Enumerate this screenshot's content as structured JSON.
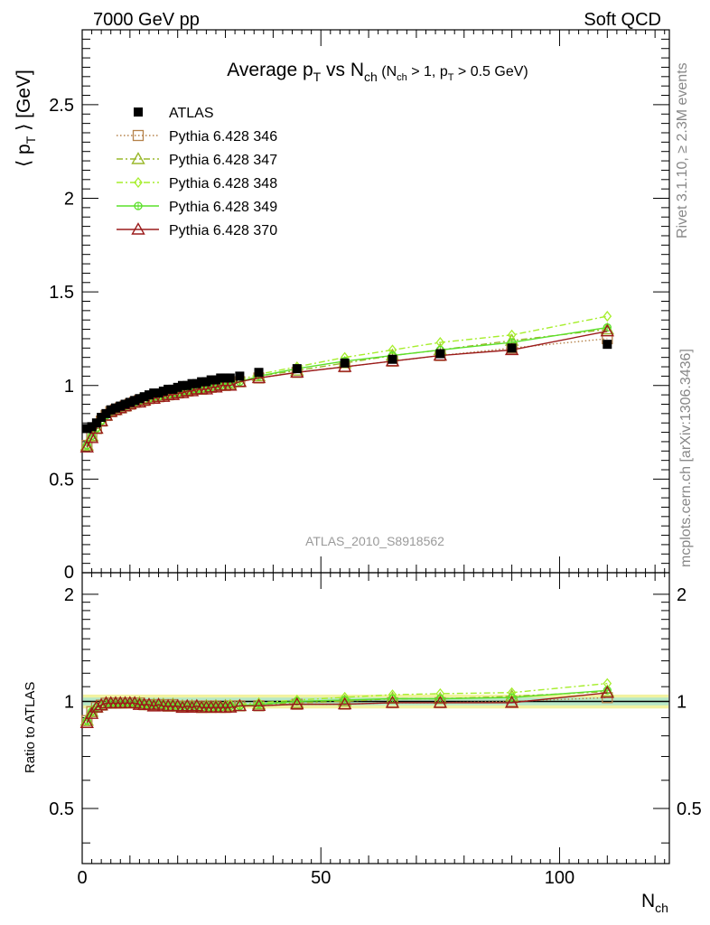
{
  "header": {
    "left": "7000 GeV pp",
    "right": "Soft QCD"
  },
  "side": {
    "rivet": "Rivet 3.1.10, ≥ 2.3M events",
    "mcplots": "mcplots.cern.ch [arXiv:1306.3436]"
  },
  "chart_data": {
    "type": "line",
    "title": "Average p_T vs N_ch (N_ch > 1, p_T > 0.5 GeV)",
    "analysis_label": "ATLAS_2010_S8918562",
    "xlabel": "N_ch",
    "ylabel": "⟨ p_T ⟩ [GeV]",
    "ratio_ylabel": "Ratio to ATLAS",
    "xlim": [
      0,
      123
    ],
    "ylim": [
      0,
      2.9
    ],
    "ratio_ylim": [
      0.35,
      2.3
    ],
    "x_ticks": [
      0,
      50,
      100
    ],
    "y_ticks": [
      "0.5",
      "1",
      "1.5",
      "2",
      "2.5"
    ],
    "y_tick_bottom": "0",
    "ratio_ticks": [
      "0.5",
      "1",
      "2"
    ],
    "legend_position": "top-left",
    "x": [
      1,
      2,
      3,
      4,
      5,
      6,
      7,
      8,
      9,
      10,
      11,
      12,
      13,
      14,
      15,
      16,
      17,
      18,
      19,
      20,
      21,
      22,
      23,
      24,
      25,
      26,
      27,
      28,
      29,
      30,
      31,
      33,
      37,
      45,
      55,
      65,
      75,
      90,
      110
    ],
    "series": [
      {
        "name": "ATLAS",
        "color": "#000000",
        "marker": "square-filled",
        "line": "none",
        "values": [
          0.77,
          0.78,
          0.8,
          0.83,
          0.85,
          0.87,
          0.88,
          0.89,
          0.9,
          0.91,
          0.92,
          0.93,
          0.94,
          0.95,
          0.96,
          0.96,
          0.97,
          0.98,
          0.98,
          0.99,
          1.0,
          1.0,
          1.01,
          1.01,
          1.02,
          1.02,
          1.03,
          1.03,
          1.04,
          1.04,
          1.04,
          1.05,
          1.07,
          1.09,
          1.12,
          1.14,
          1.17,
          1.2,
          1.22
        ]
      },
      {
        "name": "Pythia 6.428 346",
        "color": "#b5824a",
        "marker": "square-open",
        "line": "dotted",
        "values": [
          0.68,
          0.73,
          0.77,
          0.81,
          0.84,
          0.86,
          0.87,
          0.88,
          0.89,
          0.9,
          0.91,
          0.92,
          0.92,
          0.93,
          0.94,
          0.94,
          0.95,
          0.95,
          0.96,
          0.96,
          0.97,
          0.97,
          0.98,
          0.98,
          0.98,
          0.99,
          0.99,
          1.0,
          1.0,
          1.0,
          1.01,
          1.02,
          1.04,
          1.07,
          1.1,
          1.13,
          1.16,
          1.2,
          1.25
        ]
      },
      {
        "name": "Pythia 6.428 347",
        "color": "#9ab82c",
        "marker": "triangle-open",
        "line": "dash-dot",
        "values": [
          0.68,
          0.73,
          0.77,
          0.81,
          0.84,
          0.86,
          0.87,
          0.88,
          0.89,
          0.9,
          0.91,
          0.92,
          0.92,
          0.93,
          0.94,
          0.94,
          0.95,
          0.95,
          0.96,
          0.96,
          0.97,
          0.97,
          0.98,
          0.98,
          0.98,
          0.99,
          0.99,
          1.0,
          1.0,
          1.01,
          1.01,
          1.02,
          1.05,
          1.08,
          1.12,
          1.16,
          1.19,
          1.24,
          1.3
        ]
      },
      {
        "name": "Pythia 6.428 348",
        "color": "#a6ee2c",
        "marker": "diamond-open",
        "line": "dash-dot",
        "values": [
          0.68,
          0.73,
          0.77,
          0.81,
          0.84,
          0.86,
          0.87,
          0.88,
          0.89,
          0.9,
          0.91,
          0.92,
          0.92,
          0.93,
          0.94,
          0.94,
          0.95,
          0.95,
          0.96,
          0.96,
          0.97,
          0.97,
          0.98,
          0.98,
          0.99,
          0.99,
          1.0,
          1.0,
          1.01,
          1.01,
          1.02,
          1.03,
          1.06,
          1.1,
          1.15,
          1.19,
          1.23,
          1.27,
          1.37
        ]
      },
      {
        "name": "Pythia 6.428 349",
        "color": "#5ce02a",
        "marker": "circle-cross",
        "line": "solid",
        "values": [
          0.68,
          0.73,
          0.77,
          0.81,
          0.84,
          0.86,
          0.87,
          0.88,
          0.89,
          0.9,
          0.91,
          0.92,
          0.92,
          0.93,
          0.94,
          0.94,
          0.95,
          0.95,
          0.96,
          0.96,
          0.97,
          0.97,
          0.98,
          0.98,
          0.98,
          0.99,
          0.99,
          1.0,
          1.0,
          1.01,
          1.01,
          1.02,
          1.05,
          1.09,
          1.13,
          1.16,
          1.19,
          1.23,
          1.31
        ]
      },
      {
        "name": "Pythia 6.428 370",
        "color": "#9b1b1b",
        "marker": "triangle-open",
        "line": "solid",
        "values": [
          0.67,
          0.72,
          0.77,
          0.81,
          0.84,
          0.86,
          0.87,
          0.88,
          0.89,
          0.9,
          0.91,
          0.91,
          0.92,
          0.93,
          0.93,
          0.94,
          0.94,
          0.95,
          0.95,
          0.96,
          0.96,
          0.97,
          0.97,
          0.98,
          0.98,
          0.98,
          0.99,
          0.99,
          1.0,
          1.0,
          1.0,
          1.02,
          1.04,
          1.07,
          1.1,
          1.13,
          1.16,
          1.19,
          1.29
        ]
      }
    ]
  }
}
